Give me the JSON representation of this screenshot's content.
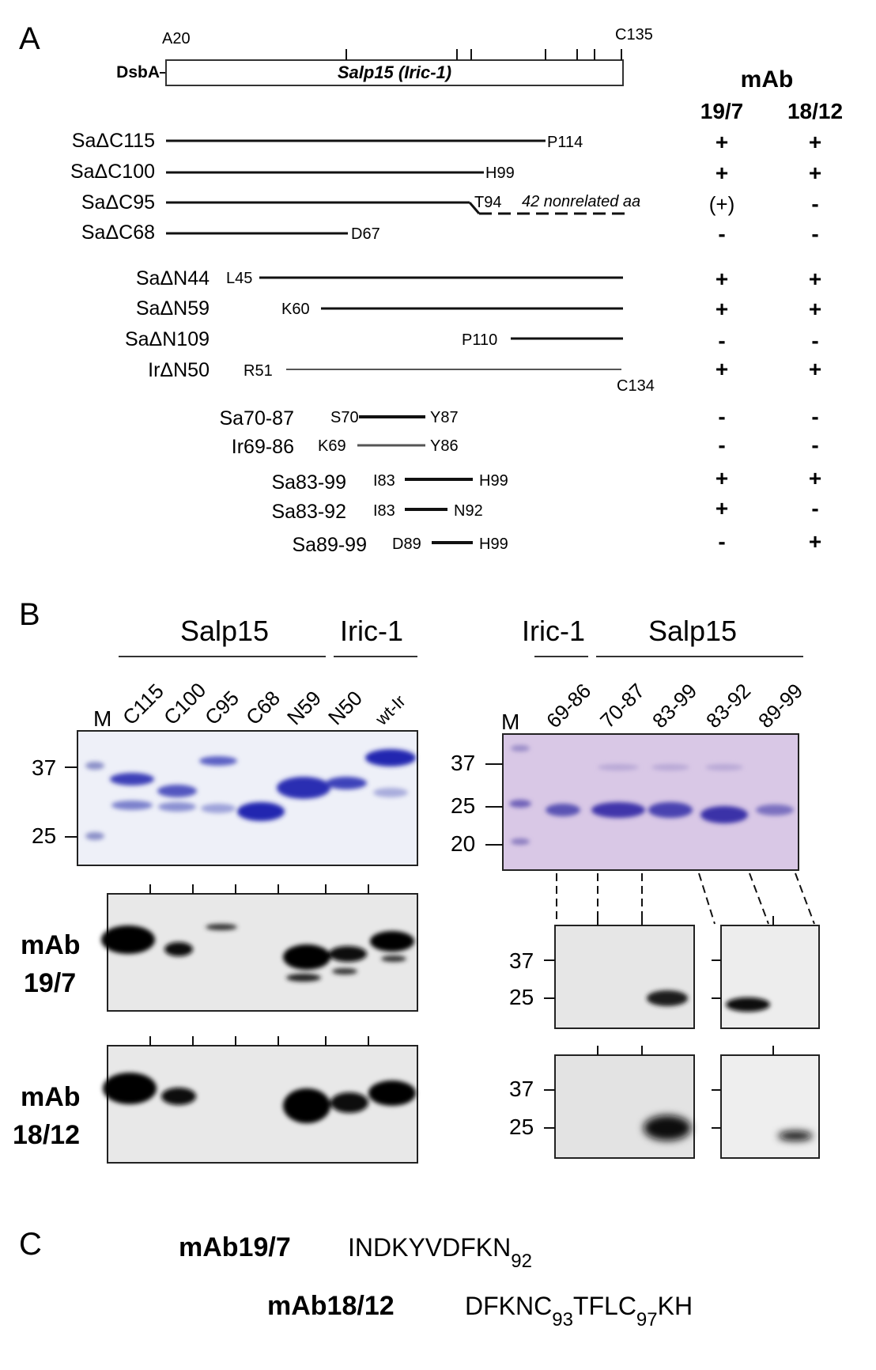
{
  "panels": {
    "A": {
      "label": "A",
      "dsba_label": "DsbA",
      "bar_label": "Salp15 (Iric-1)",
      "start_residue": "A20",
      "end_residue": "C135",
      "mab_header": "mAb",
      "mab_cols": [
        "19/7",
        "18/12"
      ],
      "constructs": [
        {
          "name": "SaΔC115",
          "start": "",
          "end": "P114",
          "mab19_7": "+",
          "mab18_12": "+"
        },
        {
          "name": "SaΔC100",
          "start": "",
          "end": "H99",
          "mab19_7": "+",
          "mab18_12": "+"
        },
        {
          "name": "SaΔC95",
          "start": "",
          "end": "T94",
          "extra": "42 nonrelated aa",
          "mab19_7": "(+)",
          "mab18_12": "-"
        },
        {
          "name": "SaΔC68",
          "start": "",
          "end": "D67",
          "mab19_7": "-",
          "mab18_12": "-"
        },
        {
          "name": "SaΔN44",
          "start": "L45",
          "end": "",
          "mab19_7": "+",
          "mab18_12": "+"
        },
        {
          "name": "SaΔN59",
          "start": "K60",
          "end": "",
          "mab19_7": "+",
          "mab18_12": "+"
        },
        {
          "name": "SaΔN109",
          "start": "P110",
          "end": "",
          "mab19_7": "-",
          "mab18_12": "-"
        },
        {
          "name": "IrΔN50",
          "start": "R51",
          "end": "C134",
          "mab19_7": "+",
          "mab18_12": "+"
        },
        {
          "name": "Sa70-87",
          "start": "S70",
          "end": "Y87",
          "mab19_7": "-",
          "mab18_12": "-"
        },
        {
          "name": "Ir69-86",
          "start": "K69",
          "end": "Y86",
          "mab19_7": "-",
          "mab18_12": "-"
        },
        {
          "name": "Sa83-99",
          "start": "I83",
          "end": "H99",
          "mab19_7": "+",
          "mab18_12": "+"
        },
        {
          "name": "Sa83-92",
          "start": "I83",
          "end": "N92",
          "mab19_7": "+",
          "mab18_12": "-"
        },
        {
          "name": "Sa89-99",
          "start": "D89",
          "end": "H99",
          "mab19_7": "-",
          "mab18_12": "+"
        }
      ]
    },
    "B": {
      "label": "B",
      "left": {
        "group_salp": "Salp15",
        "group_iric": "Iric-1",
        "lanes": [
          "M",
          "C115",
          "C100",
          "C95",
          "C68",
          "N59",
          "N50",
          "wt-Ir"
        ],
        "markers": [
          "37",
          "25"
        ]
      },
      "right": {
        "group_iric": "Iric-1",
        "group_salp": "Salp15",
        "lanes": [
          "M",
          "69-86",
          "70-87",
          "83-99",
          "83-92",
          "89-99"
        ],
        "markers": [
          "37",
          "25",
          "20"
        ],
        "blot_markers": [
          "37",
          "25"
        ]
      },
      "blot1_label": [
        "mAb",
        "19/7"
      ],
      "blot2_label": [
        "mAb",
        "18/12"
      ]
    },
    "C": {
      "label": "C",
      "row1_name": "mAb19/7",
      "row1_seq": "INDKYVDFKN",
      "row1_sub": "92",
      "row2_name": "mAb18/12",
      "row2_seq_a": "DFKNC",
      "row2_sub_a": "93",
      "row2_seq_b": "TFLC",
      "row2_sub_b": "97",
      "row2_seq_c": "KH"
    }
  }
}
